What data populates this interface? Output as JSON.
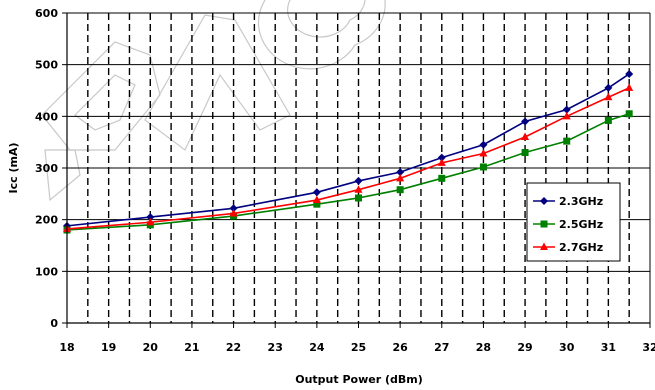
{
  "chart_data": {
    "type": "line",
    "title": "",
    "xlabel": "Output Power (dBm)",
    "ylabel": "Icc (mA)",
    "xlim": [
      18,
      32
    ],
    "ylim": [
      0,
      600
    ],
    "x_ticks": [
      18,
      19,
      20,
      21,
      22,
      23,
      24,
      25,
      26,
      27,
      28,
      29,
      30,
      31,
      32
    ],
    "y_ticks": [
      0,
      100,
      200,
      300,
      400,
      500,
      600
    ],
    "x_tick_labels": [
      "18",
      "19",
      "20",
      "21",
      "22",
      "23",
      "24",
      "25",
      "26",
      "27",
      "28",
      "29",
      "30",
      "31",
      "32"
    ],
    "y_tick_labels": [
      "0",
      "100",
      "200",
      "300",
      "400",
      "500",
      "600"
    ],
    "grid": "horizontal solid, vertical dashed",
    "legend_position": "right",
    "series": [
      {
        "name": "2.3GHz",
        "color": "#000080",
        "marker": "diamond",
        "x": [
          18,
          20,
          22,
          24,
          25,
          26,
          27,
          28,
          29,
          30,
          31,
          31.5
        ],
        "y": [
          188,
          205,
          222,
          253,
          275,
          292,
          320,
          345,
          390,
          413,
          455,
          482
        ]
      },
      {
        "name": "2.5GHz",
        "color": "#008000",
        "marker": "square",
        "x": [
          18,
          20,
          22,
          24,
          25,
          26,
          27,
          28,
          29,
          30,
          31,
          31.5
        ],
        "y": [
          180,
          190,
          207,
          230,
          242,
          258,
          280,
          302,
          330,
          352,
          392,
          405
        ]
      },
      {
        "name": "2.7GHz",
        "color": "#ff0000",
        "marker": "triangle",
        "x": [
          18,
          20,
          22,
          24,
          25,
          26,
          27,
          28,
          29,
          30,
          31,
          31.5
        ],
        "y": [
          182,
          195,
          212,
          238,
          258,
          280,
          310,
          328,
          360,
          400,
          437,
          455
        ]
      }
    ]
  }
}
